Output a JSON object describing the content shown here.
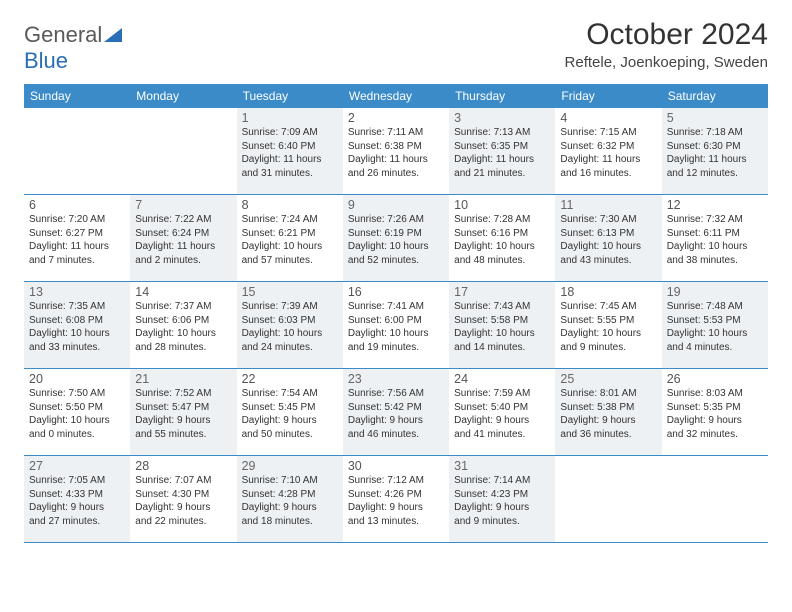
{
  "brand": {
    "name_a": "General",
    "name_b": "Blue"
  },
  "title": "October 2024",
  "location": "Reftele, Joenkoeping, Sweden",
  "colors": {
    "header_bg": "#3b8bc9",
    "header_fg": "#ffffff",
    "shaded_bg": "#eef1f4",
    "rule": "#3b8bc9",
    "logo_gray": "#5a5a5a",
    "logo_blue": "#2a6fb5"
  },
  "day_labels": [
    "Sunday",
    "Monday",
    "Tuesday",
    "Wednesday",
    "Thursday",
    "Friday",
    "Saturday"
  ],
  "weeks": [
    [
      {
        "n": "",
        "shaded": false,
        "sunrise": "",
        "sunset": "",
        "daylight1": "",
        "daylight2": ""
      },
      {
        "n": "",
        "shaded": false,
        "sunrise": "",
        "sunset": "",
        "daylight1": "",
        "daylight2": ""
      },
      {
        "n": "1",
        "shaded": true,
        "sunrise": "Sunrise: 7:09 AM",
        "sunset": "Sunset: 6:40 PM",
        "daylight1": "Daylight: 11 hours",
        "daylight2": "and 31 minutes."
      },
      {
        "n": "2",
        "shaded": false,
        "sunrise": "Sunrise: 7:11 AM",
        "sunset": "Sunset: 6:38 PM",
        "daylight1": "Daylight: 11 hours",
        "daylight2": "and 26 minutes."
      },
      {
        "n": "3",
        "shaded": true,
        "sunrise": "Sunrise: 7:13 AM",
        "sunset": "Sunset: 6:35 PM",
        "daylight1": "Daylight: 11 hours",
        "daylight2": "and 21 minutes."
      },
      {
        "n": "4",
        "shaded": false,
        "sunrise": "Sunrise: 7:15 AM",
        "sunset": "Sunset: 6:32 PM",
        "daylight1": "Daylight: 11 hours",
        "daylight2": "and 16 minutes."
      },
      {
        "n": "5",
        "shaded": true,
        "sunrise": "Sunrise: 7:18 AM",
        "sunset": "Sunset: 6:30 PM",
        "daylight1": "Daylight: 11 hours",
        "daylight2": "and 12 minutes."
      }
    ],
    [
      {
        "n": "6",
        "shaded": false,
        "sunrise": "Sunrise: 7:20 AM",
        "sunset": "Sunset: 6:27 PM",
        "daylight1": "Daylight: 11 hours",
        "daylight2": "and 7 minutes."
      },
      {
        "n": "7",
        "shaded": true,
        "sunrise": "Sunrise: 7:22 AM",
        "sunset": "Sunset: 6:24 PM",
        "daylight1": "Daylight: 11 hours",
        "daylight2": "and 2 minutes."
      },
      {
        "n": "8",
        "shaded": false,
        "sunrise": "Sunrise: 7:24 AM",
        "sunset": "Sunset: 6:21 PM",
        "daylight1": "Daylight: 10 hours",
        "daylight2": "and 57 minutes."
      },
      {
        "n": "9",
        "shaded": true,
        "sunrise": "Sunrise: 7:26 AM",
        "sunset": "Sunset: 6:19 PM",
        "daylight1": "Daylight: 10 hours",
        "daylight2": "and 52 minutes."
      },
      {
        "n": "10",
        "shaded": false,
        "sunrise": "Sunrise: 7:28 AM",
        "sunset": "Sunset: 6:16 PM",
        "daylight1": "Daylight: 10 hours",
        "daylight2": "and 48 minutes."
      },
      {
        "n": "11",
        "shaded": true,
        "sunrise": "Sunrise: 7:30 AM",
        "sunset": "Sunset: 6:13 PM",
        "daylight1": "Daylight: 10 hours",
        "daylight2": "and 43 minutes."
      },
      {
        "n": "12",
        "shaded": false,
        "sunrise": "Sunrise: 7:32 AM",
        "sunset": "Sunset: 6:11 PM",
        "daylight1": "Daylight: 10 hours",
        "daylight2": "and 38 minutes."
      }
    ],
    [
      {
        "n": "13",
        "shaded": true,
        "sunrise": "Sunrise: 7:35 AM",
        "sunset": "Sunset: 6:08 PM",
        "daylight1": "Daylight: 10 hours",
        "daylight2": "and 33 minutes."
      },
      {
        "n": "14",
        "shaded": false,
        "sunrise": "Sunrise: 7:37 AM",
        "sunset": "Sunset: 6:06 PM",
        "daylight1": "Daylight: 10 hours",
        "daylight2": "and 28 minutes."
      },
      {
        "n": "15",
        "shaded": true,
        "sunrise": "Sunrise: 7:39 AM",
        "sunset": "Sunset: 6:03 PM",
        "daylight1": "Daylight: 10 hours",
        "daylight2": "and 24 minutes."
      },
      {
        "n": "16",
        "shaded": false,
        "sunrise": "Sunrise: 7:41 AM",
        "sunset": "Sunset: 6:00 PM",
        "daylight1": "Daylight: 10 hours",
        "daylight2": "and 19 minutes."
      },
      {
        "n": "17",
        "shaded": true,
        "sunrise": "Sunrise: 7:43 AM",
        "sunset": "Sunset: 5:58 PM",
        "daylight1": "Daylight: 10 hours",
        "daylight2": "and 14 minutes."
      },
      {
        "n": "18",
        "shaded": false,
        "sunrise": "Sunrise: 7:45 AM",
        "sunset": "Sunset: 5:55 PM",
        "daylight1": "Daylight: 10 hours",
        "daylight2": "and 9 minutes."
      },
      {
        "n": "19",
        "shaded": true,
        "sunrise": "Sunrise: 7:48 AM",
        "sunset": "Sunset: 5:53 PM",
        "daylight1": "Daylight: 10 hours",
        "daylight2": "and 4 minutes."
      }
    ],
    [
      {
        "n": "20",
        "shaded": false,
        "sunrise": "Sunrise: 7:50 AM",
        "sunset": "Sunset: 5:50 PM",
        "daylight1": "Daylight: 10 hours",
        "daylight2": "and 0 minutes."
      },
      {
        "n": "21",
        "shaded": true,
        "sunrise": "Sunrise: 7:52 AM",
        "sunset": "Sunset: 5:47 PM",
        "daylight1": "Daylight: 9 hours",
        "daylight2": "and 55 minutes."
      },
      {
        "n": "22",
        "shaded": false,
        "sunrise": "Sunrise: 7:54 AM",
        "sunset": "Sunset: 5:45 PM",
        "daylight1": "Daylight: 9 hours",
        "daylight2": "and 50 minutes."
      },
      {
        "n": "23",
        "shaded": true,
        "sunrise": "Sunrise: 7:56 AM",
        "sunset": "Sunset: 5:42 PM",
        "daylight1": "Daylight: 9 hours",
        "daylight2": "and 46 minutes."
      },
      {
        "n": "24",
        "shaded": false,
        "sunrise": "Sunrise: 7:59 AM",
        "sunset": "Sunset: 5:40 PM",
        "daylight1": "Daylight: 9 hours",
        "daylight2": "and 41 minutes."
      },
      {
        "n": "25",
        "shaded": true,
        "sunrise": "Sunrise: 8:01 AM",
        "sunset": "Sunset: 5:38 PM",
        "daylight1": "Daylight: 9 hours",
        "daylight2": "and 36 minutes."
      },
      {
        "n": "26",
        "shaded": false,
        "sunrise": "Sunrise: 8:03 AM",
        "sunset": "Sunset: 5:35 PM",
        "daylight1": "Daylight: 9 hours",
        "daylight2": "and 32 minutes."
      }
    ],
    [
      {
        "n": "27",
        "shaded": true,
        "sunrise": "Sunrise: 7:05 AM",
        "sunset": "Sunset: 4:33 PM",
        "daylight1": "Daylight: 9 hours",
        "daylight2": "and 27 minutes."
      },
      {
        "n": "28",
        "shaded": false,
        "sunrise": "Sunrise: 7:07 AM",
        "sunset": "Sunset: 4:30 PM",
        "daylight1": "Daylight: 9 hours",
        "daylight2": "and 22 minutes."
      },
      {
        "n": "29",
        "shaded": true,
        "sunrise": "Sunrise: 7:10 AM",
        "sunset": "Sunset: 4:28 PM",
        "daylight1": "Daylight: 9 hours",
        "daylight2": "and 18 minutes."
      },
      {
        "n": "30",
        "shaded": false,
        "sunrise": "Sunrise: 7:12 AM",
        "sunset": "Sunset: 4:26 PM",
        "daylight1": "Daylight: 9 hours",
        "daylight2": "and 13 minutes."
      },
      {
        "n": "31",
        "shaded": true,
        "sunrise": "Sunrise: 7:14 AM",
        "sunset": "Sunset: 4:23 PM",
        "daylight1": "Daylight: 9 hours",
        "daylight2": "and 9 minutes."
      },
      {
        "n": "",
        "shaded": false,
        "sunrise": "",
        "sunset": "",
        "daylight1": "",
        "daylight2": ""
      },
      {
        "n": "",
        "shaded": false,
        "sunrise": "",
        "sunset": "",
        "daylight1": "",
        "daylight2": ""
      }
    ]
  ]
}
